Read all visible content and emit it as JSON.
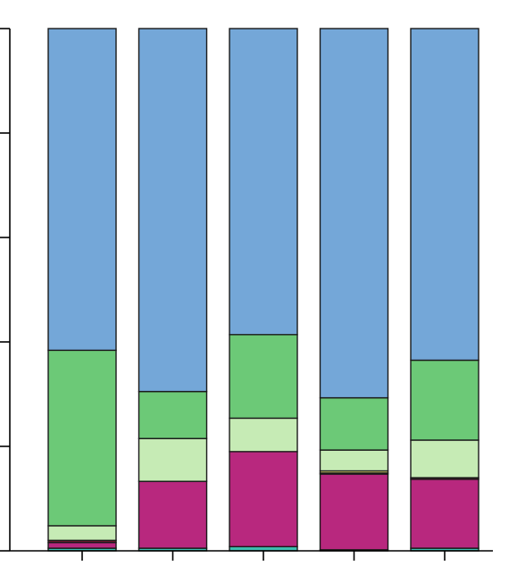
{
  "chart_data": {
    "type": "bar",
    "stacked": true,
    "normalized": true,
    "title": "",
    "xlabel": "",
    "ylabel": "",
    "categories": [
      "",
      "",
      "",
      "",
      ""
    ],
    "ylim": [
      0,
      1
    ],
    "yticks": [
      0,
      0.2,
      0.4,
      0.6,
      0.8,
      1.0
    ],
    "grid": false,
    "legend": "none",
    "series": [
      {
        "color": "#3fbfb0",
        "values": [
          0.005,
          0.005,
          0.008,
          0.002,
          0.005
        ]
      },
      {
        "color": "#b8287e",
        "values": [
          0.011,
          0.128,
          0.182,
          0.145,
          0.132
        ]
      },
      {
        "color": "#6e1a2e",
        "values": [
          0.004,
          0.0,
          0.0,
          0.002,
          0.003
        ]
      },
      {
        "color": "#f2ee7a",
        "values": [
          0.0,
          0.0,
          0.0,
          0.004,
          0.0
        ]
      },
      {
        "color": "#c6ebb5",
        "values": [
          0.028,
          0.082,
          0.064,
          0.04,
          0.072
        ]
      },
      {
        "color": "#6cc977",
        "values": [
          0.336,
          0.09,
          0.16,
          0.1,
          0.153
        ]
      },
      {
        "color": "#74a7d8",
        "values": [
          0.616,
          0.695,
          0.586,
          0.707,
          0.635
        ]
      }
    ]
  }
}
